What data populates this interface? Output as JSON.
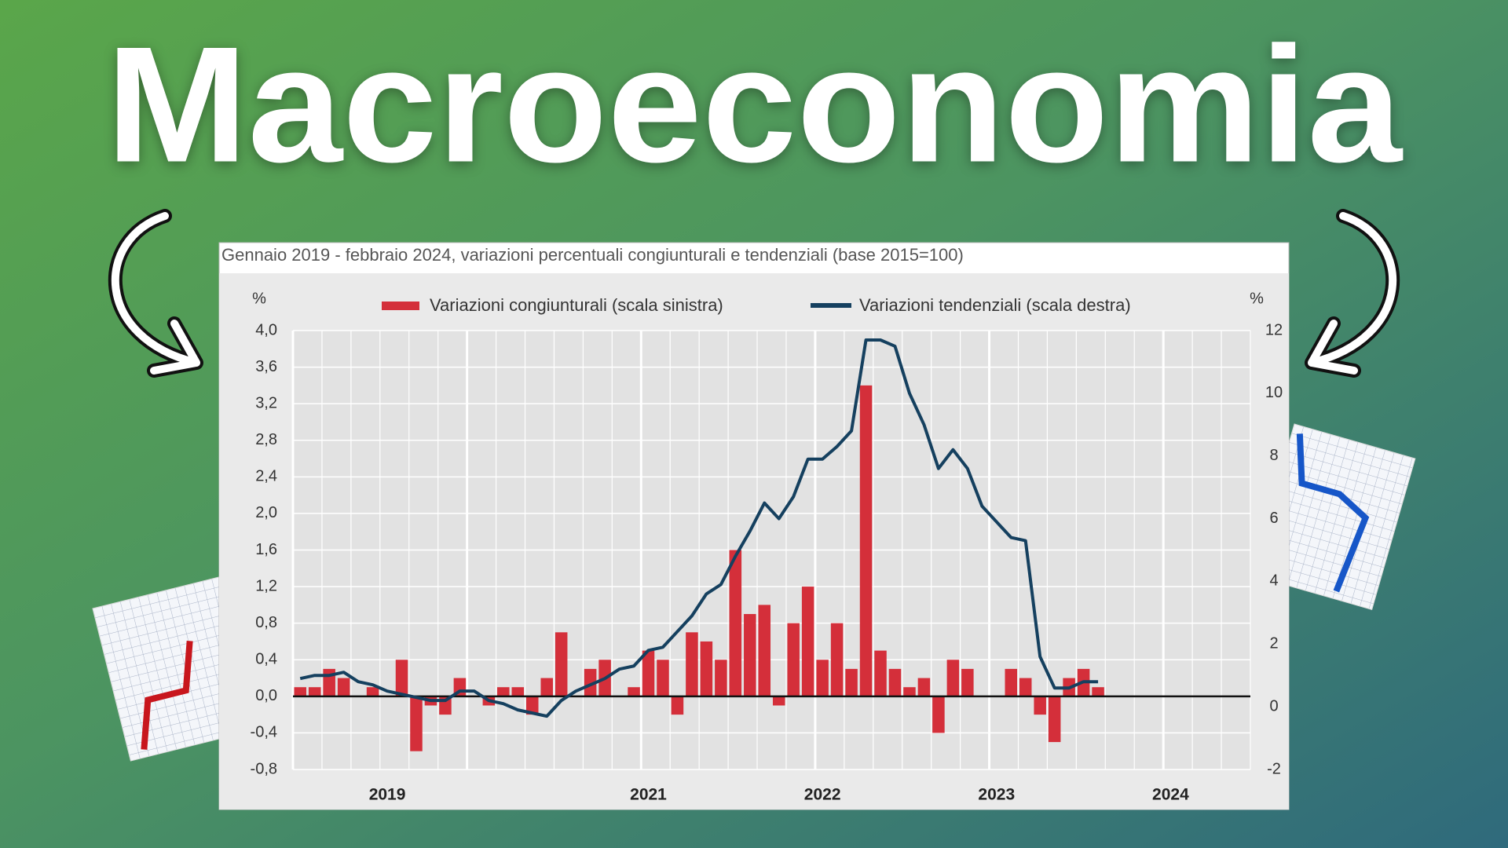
{
  "header": {
    "title": "Macroeconomia"
  },
  "chart_data": {
    "type": "combo",
    "title": "Gennaio 2019 - febbraio 2024, variazioni percentuali congiunturali e tendenziali (base 2015=100)",
    "y_label": "%",
    "y2_label": "%",
    "categories": [
      null,
      null,
      null,
      null,
      null,
      null,
      "2019",
      null,
      null,
      null,
      null,
      null,
      null,
      null,
      null,
      null,
      null,
      null,
      null,
      null,
      null,
      null,
      null,
      null,
      "2021",
      null,
      null,
      null,
      null,
      null,
      null,
      null,
      null,
      null,
      null,
      null,
      "2022",
      null,
      null,
      null,
      null,
      null,
      null,
      null,
      null,
      null,
      null,
      null,
      "2023",
      null,
      null,
      null,
      null,
      null,
      null,
      null,
      null,
      null,
      null,
      null,
      "2024",
      null,
      null,
      null,
      null,
      null
    ],
    "series": [
      {
        "name": "Variazioni congiunturali (scala sinistra)",
        "type": "bar",
        "color": "#d42f3a",
        "values": [
          0.1,
          0.1,
          0.3,
          0.2,
          0,
          0.1,
          0,
          0.4,
          -0.6,
          -0.1,
          -0.2,
          0.2,
          0,
          -0.1,
          0.1,
          0.1,
          -0.2,
          0.2,
          0.7,
          0,
          0.3,
          0.4,
          0,
          0.1,
          0.5,
          0.4,
          -0.2,
          0.7,
          0.6,
          0.4,
          1.6,
          0.9,
          1.0,
          -0.1,
          0.8,
          1.2,
          0.4,
          0.8,
          0.3,
          3.4,
          0.5,
          0.3,
          0.1,
          0.2,
          -0.4,
          0.4,
          0.3,
          0,
          0,
          0.3,
          0.2,
          -0.2,
          -0.5,
          0.2,
          0.3,
          0.1,
          null,
          null,
          null,
          null,
          null,
          null,
          null,
          null,
          null,
          null
        ]
      },
      {
        "name": "Variazioni tendenziali (scala destra)",
        "type": "line",
        "axis": "y2",
        "color": "#15405f",
        "values": [
          0.9,
          1.0,
          1.0,
          1.1,
          0.8,
          0.7,
          0.5,
          0.4,
          0.3,
          0.2,
          0.2,
          0.5,
          0.5,
          0.2,
          0.1,
          -0.1,
          -0.2,
          -0.3,
          0.2,
          0.5,
          0.7,
          0.9,
          1.2,
          1.3,
          1.8,
          1.9,
          2.4,
          2.9,
          3.6,
          3.9,
          4.8,
          5.6,
          6.5,
          6.0,
          6.7,
          7.9,
          7.9,
          8.3,
          8.8,
          11.7,
          11.7,
          11.5,
          10.0,
          9.0,
          7.6,
          8.2,
          7.6,
          6.4,
          5.9,
          5.4,
          5.3,
          1.6,
          0.6,
          0.6,
          0.8,
          0.8,
          null,
          null,
          null,
          null,
          null,
          null,
          null,
          null,
          null,
          null
        ]
      }
    ],
    "ylim": [
      -0.8,
      4.0
    ],
    "yticks": [
      {
        "value": -0.8,
        "label": "-0,8"
      },
      {
        "value": -0.4,
        "label": "-0,4"
      },
      {
        "value": 0,
        "label": "0,0"
      },
      {
        "value": 0.4,
        "label": "0,4"
      },
      {
        "value": 0.8,
        "label": "0,8"
      },
      {
        "value": 1.2,
        "label": "1,2"
      },
      {
        "value": 1.6,
        "label": "1,6"
      },
      {
        "value": 2.0,
        "label": "2,0"
      },
      {
        "value": 2.4,
        "label": "2,4"
      },
      {
        "value": 2.8,
        "label": "2,8"
      },
      {
        "value": 3.2,
        "label": "3,2"
      },
      {
        "value": 3.6,
        "label": "3,6"
      },
      {
        "value": 4.0,
        "label": "4,0"
      }
    ],
    "y2lim": [
      -2,
      12
    ],
    "y2ticks": [
      -2,
      0,
      2,
      4,
      6,
      8,
      10,
      12
    ],
    "grid": true
  }
}
